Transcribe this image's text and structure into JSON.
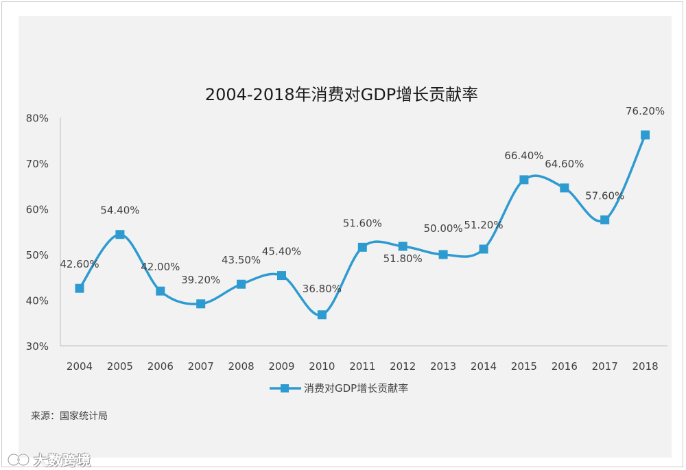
{
  "chart_data": {
    "type": "line",
    "title": "2004-2018年消费对GDP增长贡献率",
    "categories": [
      "2004",
      "2005",
      "2006",
      "2007",
      "2008",
      "2009",
      "2010",
      "2011",
      "2012",
      "2013",
      "2014",
      "2015",
      "2016",
      "2017",
      "2018"
    ],
    "series": [
      {
        "name": "消费对GDP增长贡献率",
        "values": [
          42.6,
          54.4,
          42.0,
          39.2,
          43.5,
          45.4,
          36.8,
          51.6,
          51.8,
          50.0,
          51.2,
          66.4,
          64.6,
          57.6,
          76.2
        ],
        "labels": [
          "42.60%",
          "54.40%",
          "42.00%",
          "39.20%",
          "43.50%",
          "45.40%",
          "36.80%",
          "51.60%",
          "51.80%",
          "50.00%",
          "51.20%",
          "66.40%",
          "64.60%",
          "57.60%",
          "76.20%"
        ],
        "color": "#2e9bd0"
      }
    ],
    "ylim": [
      30,
      80
    ],
    "yticks": [
      "30%",
      "40%",
      "50%",
      "60%",
      "70%",
      "80%"
    ],
    "xlabel": "",
    "ylabel": "",
    "legend": "bottom-center",
    "grid": false
  },
  "source": "来源：国家统计局",
  "watermark": "大数跨境",
  "colors": {
    "line": "#2e9bd0",
    "axis": "#bfbfbf",
    "text": "#404040",
    "panel": "#f2f2f2"
  }
}
